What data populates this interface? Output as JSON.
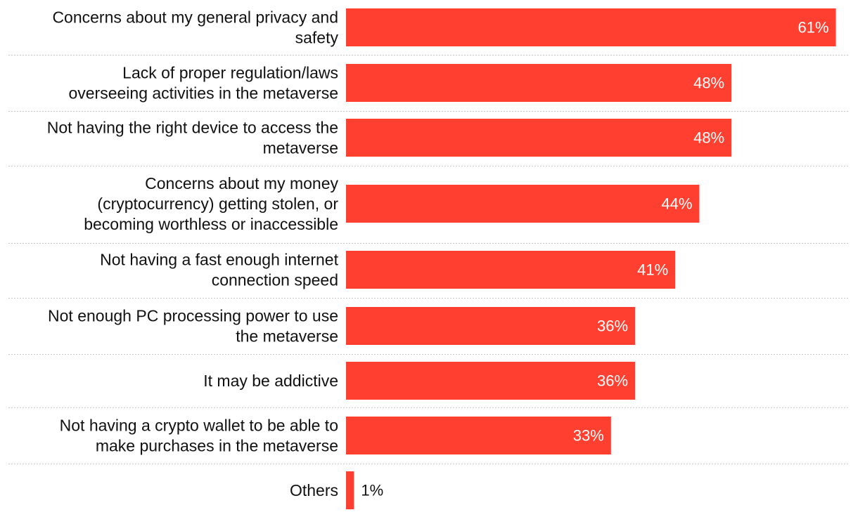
{
  "chart_data": {
    "type": "bar",
    "orientation": "horizontal",
    "bar_color": "#ff4030",
    "inside_label_color": "#ffffff",
    "outside_label_color": "#111111",
    "separator_color": "#c8c8c8",
    "categories": [
      [
        "Concerns about my general privacy and",
        "safety"
      ],
      [
        "Lack of proper regulation/laws",
        "overseeing activities in the metaverse"
      ],
      [
        "Not having the right device to access the",
        "metaverse"
      ],
      [
        "Concerns about my money",
        "(cryptocurrency) getting stolen, or",
        "becoming worthless or inaccessible"
      ],
      [
        "Not having a fast enough internet",
        "connection speed"
      ],
      [
        "Not enough PC processing power to use",
        "the metaverse"
      ],
      [
        "It may be addictive"
      ],
      [
        "Not having a crypto wallet to be able to",
        "make purchases in the metaverse"
      ],
      [
        "Others"
      ]
    ],
    "values": [
      61,
      48,
      48,
      44,
      41,
      36,
      36,
      33,
      1
    ],
    "value_labels": [
      "61%",
      "48%",
      "48%",
      "44%",
      "41%",
      "36%",
      "36%",
      "33%",
      "1%"
    ],
    "xlim": [
      0,
      62.7
    ],
    "title": "",
    "xlabel": "",
    "ylabel": ""
  }
}
